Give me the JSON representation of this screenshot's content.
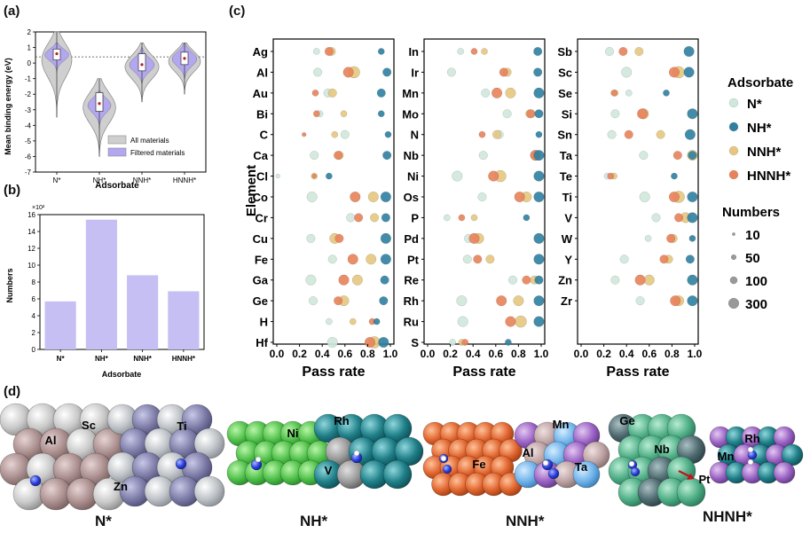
{
  "panels": {
    "a": "(a)",
    "b": "(b)",
    "c": "(c)",
    "d": "(d)"
  },
  "panel_a": {
    "chart_data": {
      "type": "violin",
      "ylabel": "Mean binding energy (eV)",
      "xlabel": "Adsorbate",
      "categories": [
        "N*",
        "NH*",
        "NNH*",
        "HNNH*"
      ],
      "yticks": [
        2,
        1,
        0,
        -1,
        -2,
        -3,
        -4,
        -5,
        -6,
        -7
      ],
      "ylim": [
        -7,
        2
      ],
      "reference_line": 0.4,
      "medians": [
        0.6,
        -2.6,
        -0.1,
        0.3
      ],
      "box_q1": [
        0.2,
        -3.1,
        -0.5,
        -0.1
      ],
      "box_q3": [
        0.9,
        -1.9,
        0.6,
        0.7
      ],
      "all_range": [
        [
          -3.5,
          2.0
        ],
        [
          -6.0,
          -1.0
        ],
        [
          -2.5,
          1.3
        ],
        [
          -2.0,
          1.3
        ]
      ],
      "filtered_range": [
        [
          -0.6,
          1.3
        ],
        [
          -4.2,
          -1.8
        ],
        [
          -1.3,
          1.0
        ],
        [
          -1.0,
          1.3
        ]
      ],
      "legend": [
        "All materials",
        "Filtered materials"
      ],
      "colors": {
        "all": "#cfcfcf",
        "filtered": "#b3a7f0"
      }
    }
  },
  "panel_b": {
    "chart_data": {
      "type": "bar",
      "ylabel": "Numbers",
      "xlabel": "Adsorbate",
      "scale_note": "×10²",
      "categories": [
        "N*",
        "NH*",
        "NNH*",
        "HNNH*"
      ],
      "values": [
        5.7,
        15.4,
        8.8,
        6.9
      ],
      "yticks": [
        0,
        2,
        4,
        6,
        8,
        10,
        12,
        14,
        16
      ],
      "ylim": [
        0,
        16
      ],
      "color": "#c5bff4"
    }
  },
  "panel_c": {
    "chart_data": {
      "type": "scatter",
      "ylabel": "Element",
      "xlabel": "Pass rate",
      "xticks": [
        "0.0",
        "0.2",
        "0.4",
        "0.6",
        "0.8",
        "1.0"
      ],
      "xlim": [
        0,
        1
      ],
      "legend_title": "Adsorbate",
      "series": [
        {
          "name": "N*",
          "color": "#cfe8dc"
        },
        {
          "name": "NH*",
          "color": "#2f7fa0"
        },
        {
          "name": "NNH*",
          "color": "#e6c680"
        },
        {
          "name": "HNNH*",
          "color": "#e8825a"
        }
      ],
      "size_title": "Numbers",
      "size_legend": [
        "10",
        "50",
        "100",
        "300"
      ],
      "columns": [
        {
          "elements": [
            "Ag",
            "Al",
            "Au",
            "Bi",
            "C",
            "Ca",
            "Cl",
            "Co",
            "Cr",
            "Cu",
            "Fe",
            "Ga",
            "Ge",
            "H",
            "Hf"
          ],
          "points": [
            [
              [
                0.35,
                3
              ],
              [
                0.92,
                3
              ],
              [
                0.48,
                4
              ],
              [
                0.46,
                4
              ]
            ],
            [
              [
                0.36,
                4
              ],
              [
                0.97,
                4
              ],
              [
                0.68,
                6
              ],
              [
                0.63,
                5
              ]
            ],
            [
              [
                0.45,
                4
              ],
              [
                0.92,
                4
              ],
              [
                0.49,
                4
              ],
              [
                0.34,
                3
              ]
            ],
            [
              [
                0.38,
                3
              ],
              [
                0.92,
                3
              ],
              [
                0.59,
                3
              ],
              [
                0.35,
                3
              ]
            ],
            [
              [
                0.6,
                4
              ],
              [
                0.98,
                3
              ],
              [
                0.51,
                3
              ],
              [
                0.24,
                2
              ]
            ],
            [
              [
                0.33,
                4
              ],
              [
                0.97,
                4
              ],
              [
                0.55,
                4
              ],
              [
                0.54,
                4
              ]
            ],
            [
              [
                0.01,
                2
              ],
              [
                0.46,
                3
              ],
              [
                0.33,
                3
              ],
              [
                0.33,
                2
              ]
            ],
            [
              [
                0.31,
                5
              ],
              [
                0.96,
                5
              ],
              [
                0.85,
                5
              ],
              [
                0.69,
                5
              ]
            ],
            [
              [
                0.65,
                4
              ],
              [
                0.96,
                4
              ],
              [
                0.86,
                4
              ],
              [
                0.72,
                4
              ]
            ],
            [
              [
                0.3,
                4
              ],
              [
                0.96,
                5
              ],
              [
                0.51,
                5
              ],
              [
                0.55,
                4
              ]
            ],
            [
              [
                0.49,
                4
              ],
              [
                0.96,
                5
              ],
              [
                0.83,
                5
              ],
              [
                0.67,
                5
              ]
            ],
            [
              [
                0.3,
                5
              ],
              [
                0.95,
                4
              ],
              [
                0.71,
                5
              ],
              [
                0.59,
                5
              ]
            ],
            [
              [
                0.32,
                4
              ],
              [
                0.94,
                4
              ],
              [
                0.59,
                5
              ],
              [
                0.54,
                4
              ]
            ],
            [
              [
                0.46,
                3
              ],
              [
                0.88,
                3
              ],
              [
                0.67,
                3
              ],
              [
                0.84,
                3
              ]
            ],
            [
              [
                0.49,
                5
              ],
              [
                0.94,
                5
              ],
              [
                0.86,
                6
              ],
              [
                0.82,
                5
              ]
            ]
          ]
        },
        {
          "elements": [
            "In",
            "Ir",
            "Mn",
            "Mo",
            "N",
            "Nb",
            "Ni",
            "Os",
            "P",
            "Pd",
            "Pt",
            "Re",
            "Rh",
            "Ru",
            "S"
          ],
          "points": [
            [
              [
                0.29,
                3
              ],
              [
                0.97,
                4
              ],
              [
                0.5,
                3
              ],
              [
                0.41,
                3
              ]
            ],
            [
              [
                0.21,
                4
              ],
              [
                0.97,
                4
              ],
              [
                0.7,
                4
              ],
              [
                0.67,
                4
              ]
            ],
            [
              [
                0.51,
                4
              ],
              [
                0.98,
                5
              ],
              [
                0.73,
                5
              ],
              [
                0.61,
                5
              ]
            ],
            [
              [
                0.7,
                4
              ],
              [
                0.98,
                4
              ],
              [
                0.9,
                4
              ],
              [
                0.91,
                4
              ]
            ],
            [
              [
                0.63,
                4
              ],
              [
                0.98,
                3
              ],
              [
                0.61,
                4
              ],
              [
                0.48,
                3
              ]
            ],
            [
              [
                0.49,
                4
              ],
              [
                0.98,
                5
              ],
              [
                0.95,
                5
              ],
              [
                0.95,
                5
              ]
            ],
            [
              [
                0.26,
                5
              ],
              [
                0.98,
                5
              ],
              [
                0.64,
                6
              ],
              [
                0.58,
                5
              ]
            ],
            [
              [
                0.48,
                4
              ],
              [
                0.98,
                5
              ],
              [
                0.87,
                5
              ],
              [
                0.81,
                5
              ]
            ],
            [
              [
                0.17,
                3
              ],
              [
                0.87,
                3
              ],
              [
                0.41,
                3
              ],
              [
                0.3,
                3
              ]
            ],
            [
              [
                0.36,
                4
              ],
              [
                0.98,
                5
              ],
              [
                0.45,
                5
              ],
              [
                0.41,
                5
              ]
            ],
            [
              [
                0.35,
                4
              ],
              [
                0.98,
                5
              ],
              [
                0.55,
                4
              ],
              [
                0.44,
                4
              ]
            ],
            [
              [
                0.75,
                4
              ],
              [
                0.98,
                4
              ],
              [
                0.94,
                4
              ],
              [
                0.87,
                4
              ]
            ],
            [
              [
                0.3,
                5
              ],
              [
                0.98,
                5
              ],
              [
                0.8,
                5
              ],
              [
                0.65,
                5
              ]
            ],
            [
              [
                0.31,
                5
              ],
              [
                0.98,
                5
              ],
              [
                0.82,
                6
              ],
              [
                0.73,
                5
              ]
            ],
            [
              [
                0.22,
                3
              ],
              [
                0.71,
                3
              ],
              [
                0.3,
                3
              ],
              [
                0.33,
                3
              ]
            ]
          ]
        },
        {
          "elements": [
            "Sb",
            "Sc",
            "Se",
            "Si",
            "Sn",
            "Ta",
            "Te",
            "Ti",
            "V",
            "W",
            "Y",
            "Zn",
            "Zr"
          ],
          "points": [
            [
              [
                0.25,
                4
              ],
              [
                0.95,
                5
              ],
              [
                0.51,
                4
              ],
              [
                0.37,
                4
              ]
            ],
            [
              [
                0.4,
                5
              ],
              [
                0.95,
                5
              ],
              [
                0.86,
                6
              ],
              [
                0.82,
                5
              ]
            ],
            [
              [
                0.42,
                3
              ],
              [
                0.75,
                3
              ],
              [
                0.3,
                3
              ],
              [
                0.29,
                3
              ]
            ],
            [
              [
                0.3,
                4
              ],
              [
                0.98,
                5
              ],
              [
                0.55,
                5
              ],
              [
                0.54,
                5
              ]
            ],
            [
              [
                0.27,
                4
              ],
              [
                0.96,
                5
              ],
              [
                0.7,
                4
              ],
              [
                0.42,
                4
              ]
            ],
            [
              [
                0.55,
                4
              ],
              [
                0.98,
                4
              ],
              [
                0.98,
                5
              ],
              [
                0.85,
                4
              ]
            ],
            [
              [
                0.23,
                3
              ],
              [
                0.82,
                3
              ],
              [
                0.29,
                3
              ],
              [
                0.26,
                3
              ]
            ],
            [
              [
                0.56,
                5
              ],
              [
                0.98,
                5
              ],
              [
                0.86,
                6
              ],
              [
                0.82,
                5
              ]
            ],
            [
              [
                0.66,
                4
              ],
              [
                0.98,
                5
              ],
              [
                0.92,
                5
              ],
              [
                0.86,
                4
              ]
            ],
            [
              [
                0.59,
                3
              ],
              [
                0.98,
                3
              ],
              [
                0.81,
                4
              ],
              [
                0.79,
                4
              ]
            ],
            [
              [
                0.38,
                4
              ],
              [
                0.96,
                4
              ],
              [
                0.77,
                4
              ],
              [
                0.73,
                4
              ]
            ],
            [
              [
                0.3,
                4
              ],
              [
                0.98,
                5
              ],
              [
                0.6,
                5
              ],
              [
                0.52,
                5
              ]
            ],
            [
              [
                0.52,
                4
              ],
              [
                0.98,
                5
              ],
              [
                0.86,
                5
              ],
              [
                0.83,
                5
              ]
            ]
          ]
        }
      ]
    }
  },
  "panel_d": {
    "labels": [
      "N*",
      "NH*",
      "NNH*",
      "NHNH*"
    ],
    "element_tags": {
      "Al": "Al",
      "Sc": "Sc",
      "Ti": "Ti",
      "Zn": "Zn",
      "Ni": "Ni",
      "Rh": "Rh",
      "V": "V",
      "Fe": "Fe",
      "Mn": "Mn",
      "Al2": "Al",
      "Ta": "Ta",
      "Ge": "Ge",
      "Nb": "Nb",
      "Pt": "Pt",
      "Mn2": "Mn",
      "Rh2": "Rh"
    }
  }
}
